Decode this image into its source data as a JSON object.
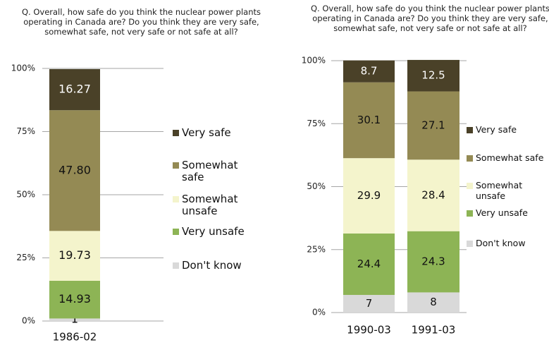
{
  "chart_data": [
    {
      "type": "bar",
      "stacked": true,
      "title": "Q. Overall, how safe do you think the nuclear power plants operating in Canada are? Do you think they are very safe, somewhat safe, not very safe or not safe at all?",
      "categories": [
        "1986-02"
      ],
      "series": [
        {
          "name": "Very safe",
          "color": "#4a4128",
          "values": [
            16.27
          ],
          "value_labels": [
            "16.27"
          ]
        },
        {
          "name": "Somewhat safe",
          "color": "#948a54",
          "values": [
            47.8
          ],
          "value_labels": [
            "47.80"
          ]
        },
        {
          "name": "Somewhat unsafe",
          "color": "#f4f4cc",
          "values": [
            19.73
          ],
          "value_labels": [
            "19.73"
          ]
        },
        {
          "name": "Very unsafe",
          "color": "#8db455",
          "values": [
            14.93
          ],
          "value_labels": [
            "14.93"
          ]
        },
        {
          "name": "Don't know",
          "color": "#d9d9d9",
          "values": [
            1
          ],
          "value_labels": [
            "1"
          ]
        }
      ],
      "ylim": [
        0,
        100
      ],
      "yticks": [
        {
          "value": 0,
          "label": "0%"
        },
        {
          "value": 25,
          "label": "25%"
        },
        {
          "value": 50,
          "label": "50%"
        },
        {
          "value": 75,
          "label": "75%"
        },
        {
          "value": 100,
          "label": "100%"
        }
      ],
      "grid": true
    },
    {
      "type": "bar",
      "stacked": true,
      "title": "Q. Overall, how safe do you think the nuclear power plants operating in Canada are? Do you think they are very safe, somewhat safe, not very safe or not safe at all?",
      "categories": [
        "1990-03",
        "1991-03"
      ],
      "series": [
        {
          "name": "Very safe",
          "color": "#4a4128",
          "values": [
            8.7,
            12.5
          ]
        },
        {
          "name": "Somewhat safe",
          "color": "#948a54",
          "values": [
            30.1,
            27.1
          ]
        },
        {
          "name": "Somewhat unsafe",
          "color": "#f4f4cc",
          "values": [
            29.9,
            28.4
          ]
        },
        {
          "name": "Very unsafe",
          "color": "#8db455",
          "values": [
            24.4,
            24.3
          ]
        },
        {
          "name": "Don't know",
          "color": "#d9d9d9",
          "values": [
            7,
            8
          ]
        }
      ],
      "ylim": [
        0,
        100
      ],
      "yticks": [
        {
          "value": 0,
          "label": "0%"
        },
        {
          "value": 25,
          "label": "25%"
        },
        {
          "value": 50,
          "label": "50%"
        },
        {
          "value": 75,
          "label": "75%"
        },
        {
          "value": 100,
          "label": "100%"
        }
      ],
      "grid": true
    }
  ]
}
